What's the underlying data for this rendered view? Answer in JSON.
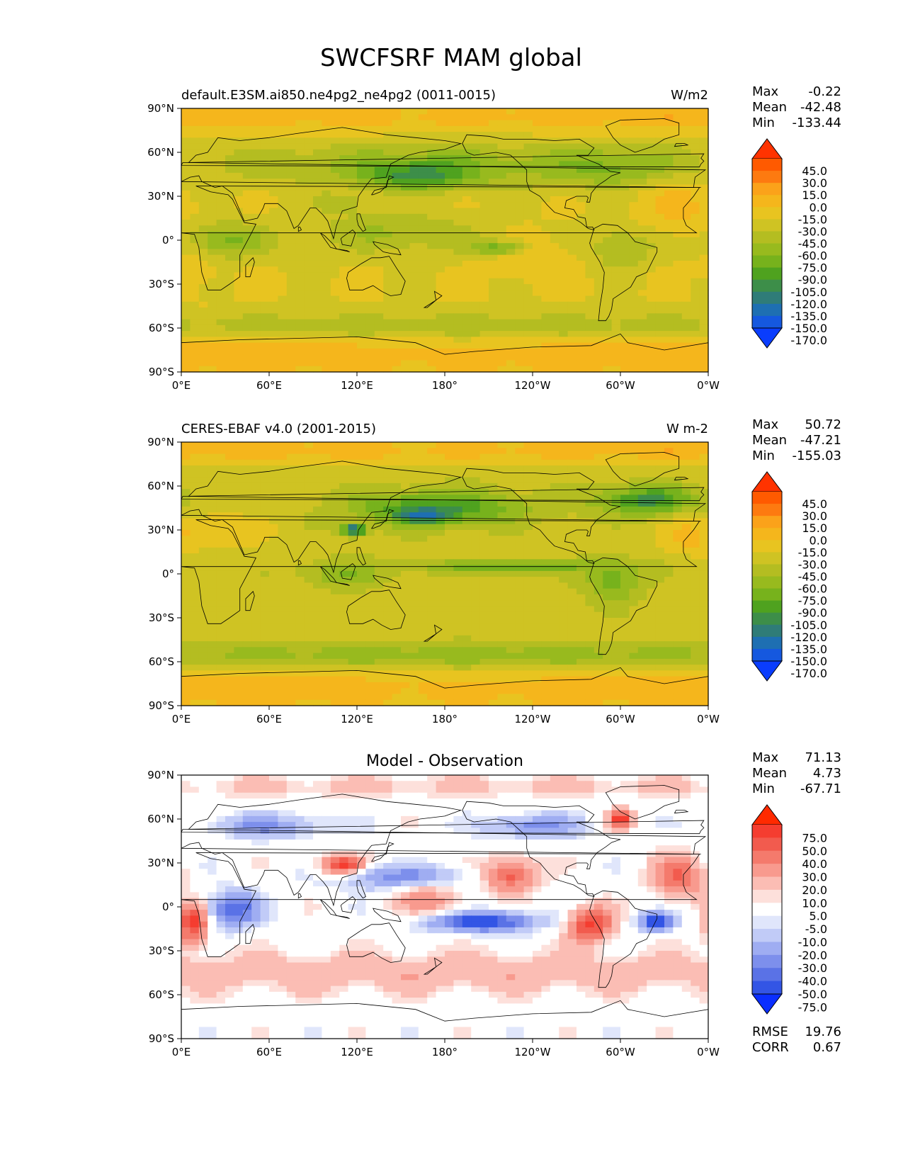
{
  "figure": {
    "title": "SWCFSRF MAM global"
  },
  "axes": {
    "lat_ticks": [
      "90°N",
      "60°N",
      "30°N",
      "0°",
      "30°S",
      "60°S",
      "90°S"
    ],
    "lon_ticks": [
      "0°E",
      "60°E",
      "120°E",
      "180°",
      "120°W",
      "60°W",
      "0°W"
    ]
  },
  "panels": [
    {
      "id": "model",
      "title_left": "default.E3SM.ai850.ne4pg2_ne4pg2 (0011-0015)",
      "title_center": "",
      "units": "W/m2",
      "stats": [
        {
          "label": "Max",
          "value": "-0.22"
        },
        {
          "label": "Mean",
          "value": "-42.48"
        },
        {
          "label": "Min",
          "value": "-133.44"
        }
      ],
      "levels": [
        "45.0",
        "30.0",
        "15.0",
        "0.0",
        "-15.0",
        "-30.0",
        "-45.0",
        "-60.0",
        "-75.0",
        "-90.0",
        "-105.0",
        "-120.0",
        "-135.0",
        "-150.0",
        "-170.0"
      ],
      "colors": [
        "#ff3300",
        "#ff5a00",
        "#fd7a10",
        "#fba21a",
        "#f5b61c",
        "#e8c420",
        "#cfc323",
        "#b4bd21",
        "#98ba1e",
        "#77b21c",
        "#4fa21f",
        "#3d8e49",
        "#2f7c78",
        "#1e6fb2",
        "#1558df",
        "#0a3dfd"
      ]
    },
    {
      "id": "obs",
      "title_left": "CERES-EBAF v4.0 (2001-2015)",
      "title_center": "",
      "units": "W m-2",
      "stats": [
        {
          "label": "Max",
          "value": "50.72"
        },
        {
          "label": "Mean",
          "value": "-47.21"
        },
        {
          "label": "Min",
          "value": "-155.03"
        }
      ],
      "levels": [
        "45.0",
        "30.0",
        "15.0",
        "0.0",
        "-15.0",
        "-30.0",
        "-45.0",
        "-60.0",
        "-75.0",
        "-90.0",
        "-105.0",
        "-120.0",
        "-135.0",
        "-150.0",
        "-170.0"
      ],
      "colors": [
        "#ff3300",
        "#ff5a00",
        "#fd7a10",
        "#fba21a",
        "#f5b61c",
        "#e8c420",
        "#cfc323",
        "#b4bd21",
        "#98ba1e",
        "#77b21c",
        "#4fa21f",
        "#3d8e49",
        "#2f7c78",
        "#1e6fb2",
        "#1558df",
        "#0a3dfd"
      ]
    },
    {
      "id": "diff",
      "title_left": "",
      "title_center": "Model - Observation",
      "units": "",
      "stats": [
        {
          "label": "Max",
          "value": "71.13"
        },
        {
          "label": "Mean",
          "value": "4.73"
        },
        {
          "label": "Min",
          "value": "-67.71"
        }
      ],
      "levels": [
        "75.0",
        "50.0",
        "40.0",
        "30.0",
        "20.0",
        "10.0",
        "5.0",
        "-5.0",
        "-10.0",
        "-20.0",
        "-30.0",
        "-40.0",
        "-50.0",
        "-75.0"
      ],
      "colors": [
        "#ff2a00",
        "#f53d30",
        "#f25b4e",
        "#f47a6c",
        "#f89a8e",
        "#fbbdb4",
        "#fde0db",
        "#ffffff",
        "#e0e6fb",
        "#c1cbf7",
        "#9fadf2",
        "#7d8fec",
        "#5a72e6",
        "#3355e5",
        "#0a2eff"
      ],
      "rmse": {
        "label": "RMSE",
        "value": "19.76"
      },
      "corr": {
        "label": "CORR",
        "value": "0.67"
      }
    }
  ],
  "chart_data": {
    "type": "heatmap",
    "title": "SWCFSRF MAM global",
    "projection": "cylindrical equidistant",
    "xlim": [
      0,
      360
    ],
    "ylim": [
      -90,
      90
    ],
    "fields": [
      {
        "name": "default.E3SM.ai850.ne4pg2_ne4pg2 (0011-0015)",
        "max": -0.22,
        "mean": -42.48,
        "min": -133.44,
        "base_value": -30,
        "features": [
          {
            "lon": 0,
            "lat": 85,
            "value": -5,
            "rlon": 360,
            "rlat": 12
          },
          {
            "lon": 0,
            "lat": -80,
            "value": -5,
            "rlon": 360,
            "rlat": 18
          },
          {
            "lon": 180,
            "lat": -58,
            "value": -55,
            "rlon": 360,
            "rlat": 9
          },
          {
            "lon": 180,
            "lat": 52,
            "value": -65,
            "rlon": 180,
            "rlat": 15
          },
          {
            "lon": 162,
            "lat": 45,
            "value": -115,
            "rlon": 38,
            "rlat": 10
          },
          {
            "lon": 295,
            "lat": 50,
            "value": -80,
            "rlon": 45,
            "rlat": 12
          },
          {
            "lon": 340,
            "lat": 22,
            "value": -8,
            "rlon": 25,
            "rlat": 18
          },
          {
            "lon": 10,
            "lat": -15,
            "value": -10,
            "rlon": 12,
            "rlat": 16
          },
          {
            "lon": 240,
            "lat": -12,
            "value": -15,
            "rlon": 30,
            "rlat": 14
          },
          {
            "lon": 30,
            "lat": 0,
            "value": -78,
            "rlon": 28,
            "rlat": 12
          },
          {
            "lon": 145,
            "lat": 5,
            "value": -62,
            "rlon": 55,
            "rlat": 14
          },
          {
            "lon": 215,
            "lat": -5,
            "value": -82,
            "rlon": 20,
            "rlat": 5
          },
          {
            "lon": 300,
            "lat": -5,
            "value": -62,
            "rlon": 22,
            "rlat": 14
          },
          {
            "lon": 110,
            "lat": 25,
            "value": -55,
            "rlon": 20,
            "rlat": 8
          }
        ]
      },
      {
        "name": "CERES-EBAF v4.0 (2001-2015)",
        "max": 50.72,
        "mean": -47.21,
        "min": -155.03,
        "base_value": -38,
        "features": [
          {
            "lon": 0,
            "lat": 85,
            "value": -5,
            "rlon": 360,
            "rlat": 10
          },
          {
            "lon": 0,
            "lat": -80,
            "value": -5,
            "rlon": 360,
            "rlat": 18
          },
          {
            "lon": 180,
            "lat": -55,
            "value": -68,
            "rlon": 360,
            "rlat": 9
          },
          {
            "lon": 175,
            "lat": 45,
            "value": -105,
            "rlon": 60,
            "rlat": 12
          },
          {
            "lon": 165,
            "lat": 40,
            "value": -140,
            "rlon": 18,
            "rlat": 5
          },
          {
            "lon": 118,
            "lat": 30,
            "value": -150,
            "rlon": 8,
            "rlat": 4
          },
          {
            "lon": 318,
            "lat": 50,
            "value": -110,
            "rlon": 35,
            "rlat": 10
          },
          {
            "lon": 20,
            "lat": 30,
            "value": -10,
            "rlon": 35,
            "rlat": 10
          },
          {
            "lon": 350,
            "lat": 25,
            "value": -10,
            "rlon": 20,
            "rlat": 12
          },
          {
            "lon": 225,
            "lat": 5,
            "value": -85,
            "rlon": 70,
            "rlat": 5
          },
          {
            "lon": 295,
            "lat": -5,
            "value": -88,
            "rlon": 18,
            "rlat": 14
          },
          {
            "lon": 110,
            "lat": 0,
            "value": -72,
            "rlon": 30,
            "rlat": 10
          }
        ]
      },
      {
        "name": "Model - Observation",
        "max": 71.13,
        "mean": 4.73,
        "min": -67.71,
        "rmse": 19.76,
        "corr": 0.67,
        "base_value": 0,
        "features": [
          {
            "lon": 180,
            "lat": -45,
            "value": 18,
            "rlon": 360,
            "rlat": 14
          },
          {
            "lon": 180,
            "lat": 82,
            "value": 12,
            "rlon": 360,
            "rlat": 8
          },
          {
            "lon": 110,
            "lat": 27,
            "value": 70,
            "rlon": 15,
            "rlat": 7
          },
          {
            "lon": 205,
            "lat": -10,
            "value": -65,
            "rlon": 35,
            "rlat": 7
          },
          {
            "lon": 280,
            "lat": -12,
            "value": 55,
            "rlon": 15,
            "rlat": 12
          },
          {
            "lon": 325,
            "lat": -10,
            "value": -65,
            "rlon": 12,
            "rlat": 6
          },
          {
            "lon": 35,
            "lat": -2,
            "value": -50,
            "rlon": 18,
            "rlat": 12
          },
          {
            "lon": 8,
            "lat": -12,
            "value": 55,
            "rlon": 10,
            "rlat": 14
          },
          {
            "lon": 150,
            "lat": 20,
            "value": -35,
            "rlon": 45,
            "rlat": 8
          },
          {
            "lon": 225,
            "lat": 22,
            "value": 45,
            "rlon": 18,
            "rlat": 12
          },
          {
            "lon": 240,
            "lat": 55,
            "value": -35,
            "rlon": 30,
            "rlat": 8
          },
          {
            "lon": 60,
            "lat": 55,
            "value": -30,
            "rlon": 40,
            "rlat": 8
          },
          {
            "lon": 340,
            "lat": 20,
            "value": 40,
            "rlon": 18,
            "rlat": 15
          },
          {
            "lon": 300,
            "lat": 60,
            "value": 55,
            "rlon": 8,
            "rlat": 6
          },
          {
            "lon": 170,
            "lat": 5,
            "value": 25,
            "rlon": 25,
            "rlat": 10
          }
        ]
      }
    ]
  }
}
